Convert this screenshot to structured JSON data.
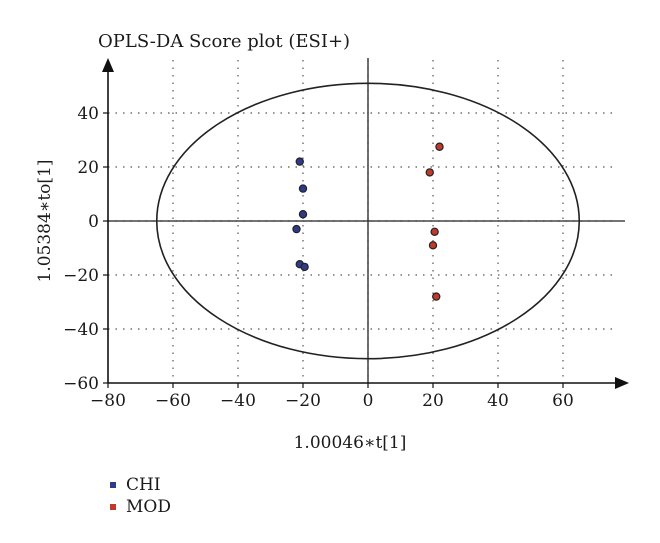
{
  "chart_data": {
    "type": "scatter",
    "title": "OPLS-DA Score plot (ESI+)",
    "xlabel": "1.00046∗t[1]",
    "ylabel": "1.05384∗to[1]",
    "xlim": [
      -80,
      80
    ],
    "ylim": [
      -60,
      60
    ],
    "xticks": [
      -80,
      -60,
      -40,
      -20,
      0,
      20,
      40,
      60
    ],
    "yticks": [
      -60,
      -40,
      -20,
      0,
      20,
      40
    ],
    "grid": true,
    "ellipse": {
      "cx": 0,
      "cy": 0,
      "rx": 65,
      "ry": 51
    },
    "legend_position": "bottom-left",
    "series": [
      {
        "name": "CHI",
        "color": "#2e3a8c",
        "points": [
          {
            "x": -21,
            "y": 22
          },
          {
            "x": -20,
            "y": 12
          },
          {
            "x": -20,
            "y": 2.5
          },
          {
            "x": -22,
            "y": -3
          },
          {
            "x": -21,
            "y": -16
          },
          {
            "x": -19.5,
            "y": -17
          }
        ]
      },
      {
        "name": "MOD",
        "color": "#c0392b",
        "points": [
          {
            "x": 22,
            "y": 27.5
          },
          {
            "x": 19,
            "y": 18
          },
          {
            "x": 20.5,
            "y": -4
          },
          {
            "x": 20,
            "y": -9
          },
          {
            "x": 21,
            "y": -28
          }
        ]
      }
    ]
  }
}
